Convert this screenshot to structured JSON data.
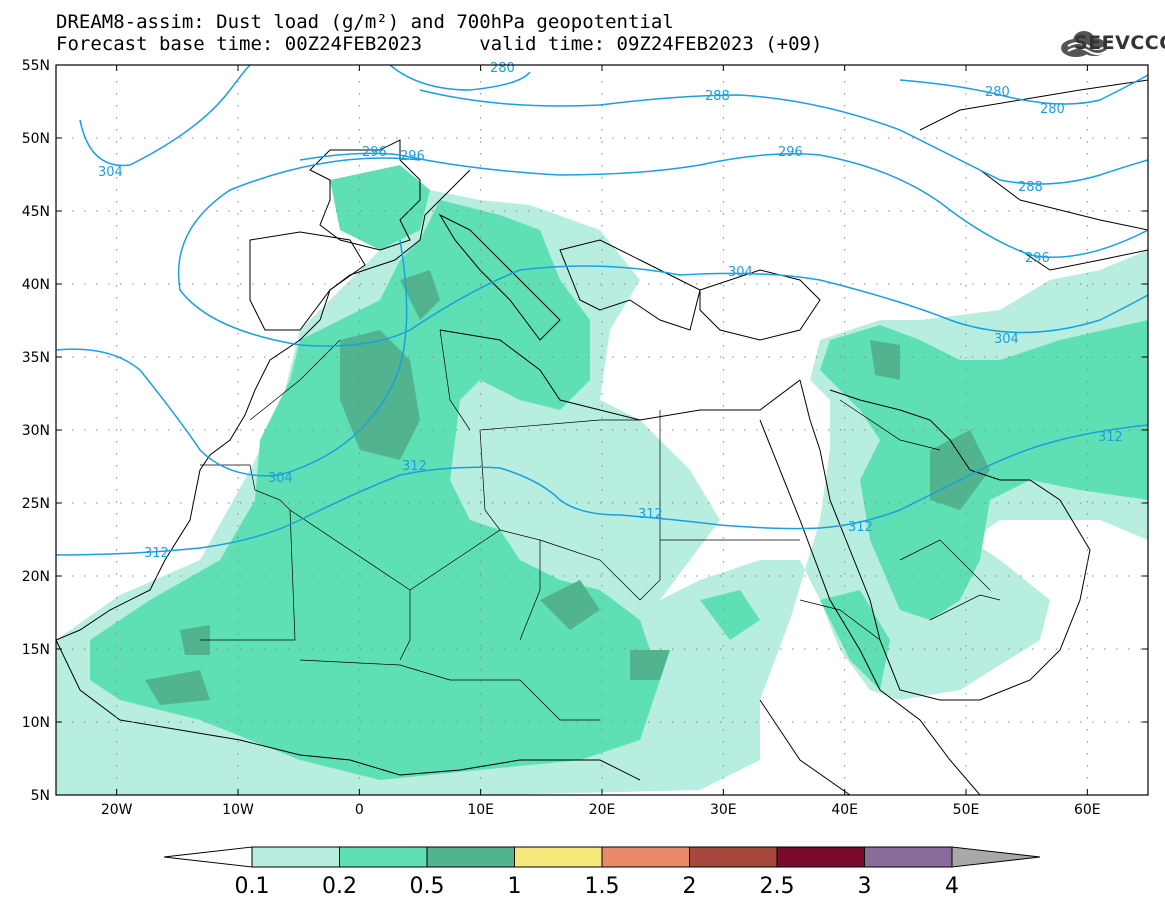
{
  "title": {
    "line1": "DREAM8-assim: Dust load (g/m²) and 700hPa geopotential",
    "line2": "Forecast base time: 00Z24FEB2023     valid time: 09Z24FEB2023 (+09)"
  },
  "logo": {
    "text": "SEEVCCC",
    "icon": "cloud-icon"
  },
  "map": {
    "lat_labels": [
      "55N",
      "50N",
      "45N",
      "40N",
      "35N",
      "30N",
      "25N",
      "20N",
      "15N",
      "10N",
      "5N"
    ],
    "lon_labels": [
      "20W",
      "10W",
      "0",
      "10E",
      "20E",
      "30E",
      "40E",
      "50E",
      "60E"
    ],
    "lat_values": [
      55,
      50,
      45,
      40,
      35,
      30,
      25,
      20,
      15,
      10,
      5
    ],
    "lon_values": [
      -20,
      -10,
      0,
      10,
      20,
      30,
      40,
      50,
      60
    ],
    "extent": {
      "lon_min": -25,
      "lon_max": 65,
      "lat_min": 5,
      "lat_max": 55
    },
    "geopotential_contours": [
      {
        "value": "280",
        "labels": [
          "280",
          "280",
          "280"
        ]
      },
      {
        "value": "288",
        "labels": [
          "288",
          "288"
        ]
      },
      {
        "value": "296",
        "labels": [
          "296",
          "296",
          "296",
          "296"
        ]
      },
      {
        "value": "304",
        "labels": [
          "304",
          "304",
          "304",
          "304"
        ]
      },
      {
        "value": "312",
        "labels": [
          "312",
          "312",
          "312",
          "312",
          "312"
        ]
      }
    ],
    "contour_color": "#1a9fe0"
  },
  "colorbar": {
    "labels": [
      "0.1",
      "0.2",
      "0.5",
      "1",
      "1.5",
      "2",
      "2.5",
      "3",
      "4"
    ],
    "colors": [
      "#b7eee0",
      "#5fe0b4",
      "#52b48e",
      "#f4e87a",
      "#e8896a",
      "#a8473c",
      "#7a0a2a",
      "#8b6a9c"
    ],
    "under_color": "#ffffff",
    "over_color": "#a8a8a8"
  }
}
